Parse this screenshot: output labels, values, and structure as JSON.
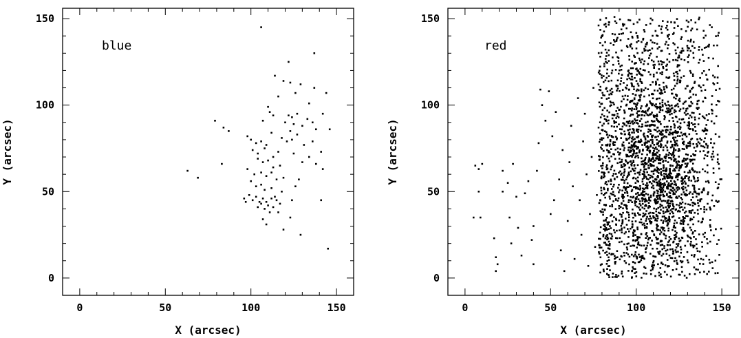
{
  "chart_data": [
    {
      "type": "scatter",
      "label": "blue",
      "xlabel": "X (arcsec)",
      "ylabel": "Y (arcsec)",
      "xlim": [
        -10,
        160
      ],
      "ylim": [
        -10,
        156
      ],
      "xticks": [
        "0",
        "50",
        "100",
        "150"
      ],
      "yticks": [
        "0",
        "50",
        "100",
        "150"
      ],
      "color": "#000000",
      "points": [
        [
          106,
          145
        ],
        [
          137,
          130
        ],
        [
          122,
          125
        ],
        [
          114,
          117
        ],
        [
          119,
          114
        ],
        [
          123,
          113
        ],
        [
          129,
          112
        ],
        [
          137,
          110
        ],
        [
          126,
          107
        ],
        [
          144,
          107
        ],
        [
          116,
          105
        ],
        [
          134,
          101
        ],
        [
          110,
          99
        ],
        [
          111,
          96
        ],
        [
          113,
          94
        ],
        [
          122,
          94
        ],
        [
          124,
          93
        ],
        [
          133,
          92
        ],
        [
          142,
          95
        ],
        [
          127,
          95
        ],
        [
          120,
          90
        ],
        [
          125,
          89
        ],
        [
          130,
          88
        ],
        [
          136,
          90
        ],
        [
          107,
          91
        ],
        [
          79,
          91
        ],
        [
          84,
          87
        ],
        [
          87,
          85
        ],
        [
          123,
          85
        ],
        [
          127,
          83
        ],
        [
          138,
          86
        ],
        [
          146,
          86
        ],
        [
          98,
          82
        ],
        [
          100,
          80
        ],
        [
          103,
          78
        ],
        [
          106,
          79
        ],
        [
          109,
          77
        ],
        [
          112,
          84
        ],
        [
          118,
          81
        ],
        [
          121,
          79
        ],
        [
          124,
          80
        ],
        [
          131,
          77
        ],
        [
          136,
          79
        ],
        [
          101,
          74
        ],
        [
          104,
          72
        ],
        [
          108,
          75
        ],
        [
          113,
          70
        ],
        [
          116,
          73
        ],
        [
          125,
          72
        ],
        [
          134,
          70
        ],
        [
          141,
          73
        ],
        [
          104,
          69
        ],
        [
          107,
          67
        ],
        [
          110,
          68
        ],
        [
          113,
          64
        ],
        [
          117,
          65
        ],
        [
          130,
          67
        ],
        [
          138,
          66
        ],
        [
          142,
          63
        ],
        [
          98,
          63
        ],
        [
          102,
          60
        ],
        [
          106,
          61
        ],
        [
          109,
          59
        ],
        [
          112,
          61
        ],
        [
          115,
          57
        ],
        [
          119,
          58
        ],
        [
          128,
          57
        ],
        [
          63,
          62
        ],
        [
          69,
          58
        ],
        [
          83,
          66
        ],
        [
          100,
          56
        ],
        [
          103,
          53
        ],
        [
          106,
          54
        ],
        [
          108,
          51
        ],
        [
          112,
          52
        ],
        [
          118,
          50
        ],
        [
          126,
          53
        ],
        [
          99,
          48
        ],
        [
          101,
          45
        ],
        [
          103,
          47
        ],
        [
          105,
          44
        ],
        [
          106,
          43
        ],
        [
          107,
          46
        ],
        [
          109,
          44
        ],
        [
          110,
          42
        ],
        [
          112,
          46
        ],
        [
          114,
          47
        ],
        [
          115,
          45
        ],
        [
          97,
          44
        ],
        [
          96,
          46
        ],
        [
          104,
          41
        ],
        [
          108,
          40
        ],
        [
          113,
          41
        ],
        [
          117,
          43
        ],
        [
          124,
          45
        ],
        [
          141,
          45
        ],
        [
          111,
          38
        ],
        [
          116,
          38
        ],
        [
          107,
          34
        ],
        [
          109,
          31
        ],
        [
          119,
          28
        ],
        [
          123,
          35
        ],
        [
          129,
          25
        ],
        [
          145,
          17
        ]
      ]
    },
    {
      "type": "scatter",
      "label": "red",
      "xlabel": "X (arcsec)",
      "ylabel": "Y (arcsec)",
      "xlim": [
        -10,
        160
      ],
      "ylim": [
        -10,
        156
      ],
      "xticks": [
        "0",
        "50",
        "100",
        "150"
      ],
      "yticks": [
        "0",
        "50",
        "100",
        "150"
      ],
      "color": "#000000",
      "points": [
        [
          5,
          35
        ],
        [
          9,
          35
        ],
        [
          8,
          50
        ],
        [
          8,
          63
        ],
        [
          6,
          65
        ],
        [
          10,
          66
        ],
        [
          17,
          23
        ],
        [
          18,
          12
        ],
        [
          19,
          8
        ],
        [
          18,
          4
        ],
        [
          22,
          50
        ],
        [
          22,
          62
        ],
        [
          25,
          55
        ],
        [
          26,
          35
        ],
        [
          27,
          20
        ],
        [
          28,
          66
        ],
        [
          30,
          47
        ],
        [
          31,
          29
        ],
        [
          33,
          13
        ],
        [
          35,
          49
        ],
        [
          37,
          56
        ],
        [
          39,
          22
        ],
        [
          40,
          30
        ],
        [
          40,
          8
        ],
        [
          42,
          62
        ],
        [
          43,
          78
        ],
        [
          44,
          109
        ],
        [
          45,
          100
        ],
        [
          47,
          91
        ],
        [
          49,
          108
        ],
        [
          51,
          82
        ],
        [
          53,
          96
        ],
        [
          50,
          37
        ],
        [
          52,
          45
        ],
        [
          55,
          57
        ],
        [
          56,
          16
        ],
        [
          57,
          74
        ],
        [
          58,
          4
        ],
        [
          60,
          33
        ],
        [
          61,
          67
        ],
        [
          62,
          88
        ],
        [
          63,
          53
        ],
        [
          64,
          11
        ],
        [
          66,
          104
        ],
        [
          67,
          45
        ],
        [
          68,
          25
        ],
        [
          69,
          79
        ],
        [
          70,
          95
        ],
        [
          71,
          60
        ],
        [
          72,
          7
        ],
        [
          73,
          37
        ],
        [
          74,
          70
        ],
        [
          75,
          110
        ],
        [
          76,
          18
        ],
        [
          77,
          48
        ],
        [
          78,
          87
        ],
        [
          79,
          128
        ],
        [
          80,
          140
        ],
        [
          81,
          61
        ],
        [
          82,
          23
        ],
        [
          83,
          74
        ],
        [
          84,
          104
        ],
        [
          85,
          36
        ],
        [
          86,
          120
        ],
        [
          87,
          54
        ],
        [
          88,
          85
        ],
        [
          89,
          12
        ],
        [
          90,
          141
        ],
        [
          91,
          67
        ]
      ],
      "density_region": {
        "x_range": [
          78,
          150
        ],
        "y_range": [
          0,
          151
        ],
        "center": [
          112,
          62
        ],
        "count": 2600
      }
    }
  ]
}
